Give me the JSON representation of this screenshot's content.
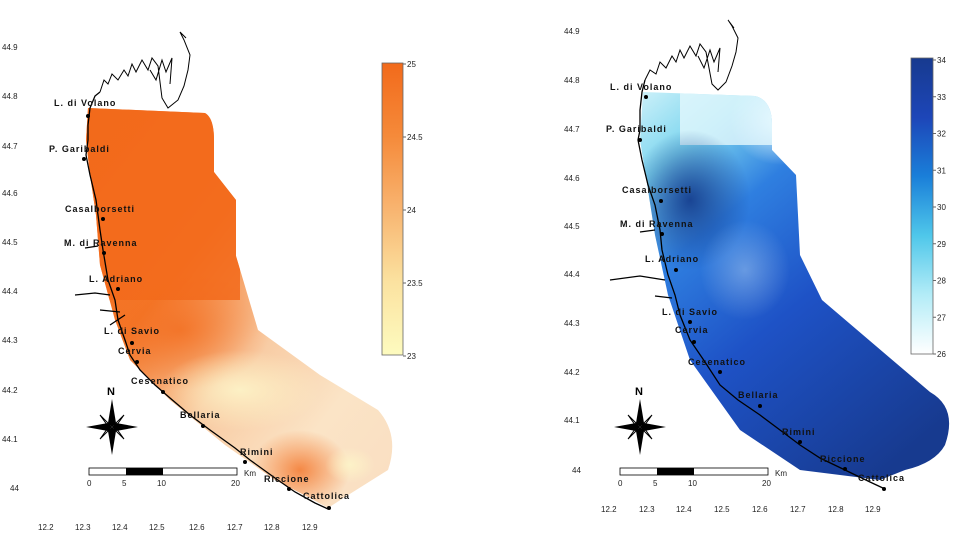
{
  "maps": [
    {
      "id": "left",
      "x_ticks": [
        "12.2",
        "12.3",
        "12.4",
        "12.5",
        "12.6",
        "12.7",
        "12.8",
        "12.9"
      ],
      "y_ticks": [
        "44",
        "44.1",
        "44.2",
        "44.3",
        "44.4",
        "44.5",
        "44.6",
        "44.7",
        "44.8",
        "44.9"
      ],
      "colorbar": {
        "min": 23,
        "max": 25,
        "labels": [
          "23",
          "23.5",
          "24",
          "24.5",
          "25"
        ],
        "colors": [
          "#fdfbbf",
          "#fbe2a0",
          "#f8b470",
          "#f58a3a",
          "#f26a1b"
        ]
      },
      "places": [
        "L. di Volano",
        "P. Garibaldi",
        "Casalborsetti",
        "M. di Ravenna",
        "L. Adriano",
        "L. di Savio",
        "Cervia",
        "Cesenatico",
        "Bellaria",
        "Rimini",
        "Riccione",
        "Cattolica"
      ],
      "north": "N",
      "scale": {
        "unit": "Km",
        "labels": [
          "0",
          "5",
          "10",
          "20"
        ]
      }
    },
    {
      "id": "right",
      "x_ticks": [
        "12.2",
        "12.3",
        "12.4",
        "12.5",
        "12.6",
        "12.7",
        "12.8",
        "12.9"
      ],
      "y_ticks": [
        "44",
        "44.1",
        "44.2",
        "44.3",
        "44.4",
        "44.5",
        "44.6",
        "44.7",
        "44.8",
        "44.9"
      ],
      "colorbar": {
        "min": 26,
        "max": 34,
        "labels": [
          "26",
          "27",
          "28",
          "29",
          "30",
          "31",
          "32",
          "33",
          "34"
        ],
        "colors": [
          "#ffffff",
          "#b3ecf7",
          "#4fc7ea",
          "#1a7fd9",
          "#1d46b8",
          "#173a8f"
        ]
      },
      "places": [
        "L. di Volano",
        "P. Garibaldi",
        "Casalborsetti",
        "M. di Ravenna",
        "L. Adriano",
        "L. di Savio",
        "Cervia",
        "Cesenatico",
        "Bellaria",
        "Rimini",
        "Riccione",
        "Cattolica"
      ],
      "north": "N",
      "scale": {
        "unit": "Km",
        "labels": [
          "0",
          "5",
          "10",
          "20"
        ]
      }
    }
  ]
}
